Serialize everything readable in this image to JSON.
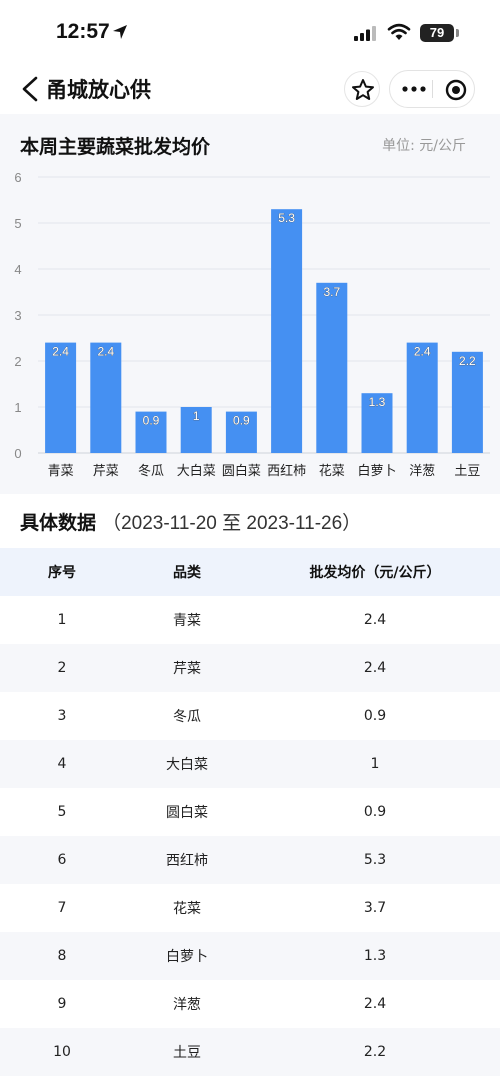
{
  "status_bar": {
    "time": "12:57",
    "battery": "79",
    "icons": [
      "location-arrow-icon",
      "signal-icon",
      "wifi-icon",
      "battery-icon"
    ]
  },
  "nav": {
    "title": "甬城放心供",
    "icons": [
      "chevron-left-icon",
      "star-icon",
      "more-dots-icon",
      "target-icon"
    ]
  },
  "chart": {
    "title": "本周主要蔬菜批发均价",
    "unit": "单位: 元/公斤"
  },
  "chart_data": {
    "type": "bar",
    "categories": [
      "青菜",
      "芹菜",
      "冬瓜",
      "大白菜",
      "圆白菜",
      "西红柿",
      "花菜",
      "白萝卜",
      "洋葱",
      "土豆"
    ],
    "values": [
      2.4,
      2.4,
      0.9,
      1,
      0.9,
      5.3,
      3.7,
      1.3,
      2.4,
      2.2
    ],
    "data_labels": [
      "2.4",
      "2.4",
      "0.9",
      "1",
      "0.9",
      "5.3",
      "3.7",
      "1.3",
      "2.4",
      "2.2"
    ],
    "yticks": [
      "0",
      "1",
      "2",
      "3",
      "4",
      "5",
      "6"
    ],
    "ylim": [
      0,
      6
    ],
    "grid": true,
    "bar_color": "#4590f2"
  },
  "data_section": {
    "title": "具体数据",
    "range": "（2023-11-20 至 2023-11-26）"
  },
  "table": {
    "headers": [
      "序号",
      "品类",
      "批发均价（元/公斤）"
    ],
    "rows": [
      [
        "1",
        "青菜",
        "2.4"
      ],
      [
        "2",
        "芹菜",
        "2.4"
      ],
      [
        "3",
        "冬瓜",
        "0.9"
      ],
      [
        "4",
        "大白菜",
        "1"
      ],
      [
        "5",
        "圆白菜",
        "0.9"
      ],
      [
        "6",
        "西红柿",
        "5.3"
      ],
      [
        "7",
        "花菜",
        "3.7"
      ],
      [
        "8",
        "白萝卜",
        "1.3"
      ],
      [
        "9",
        "洋葱",
        "2.4"
      ],
      [
        "10",
        "土豆",
        "2.2"
      ]
    ]
  }
}
